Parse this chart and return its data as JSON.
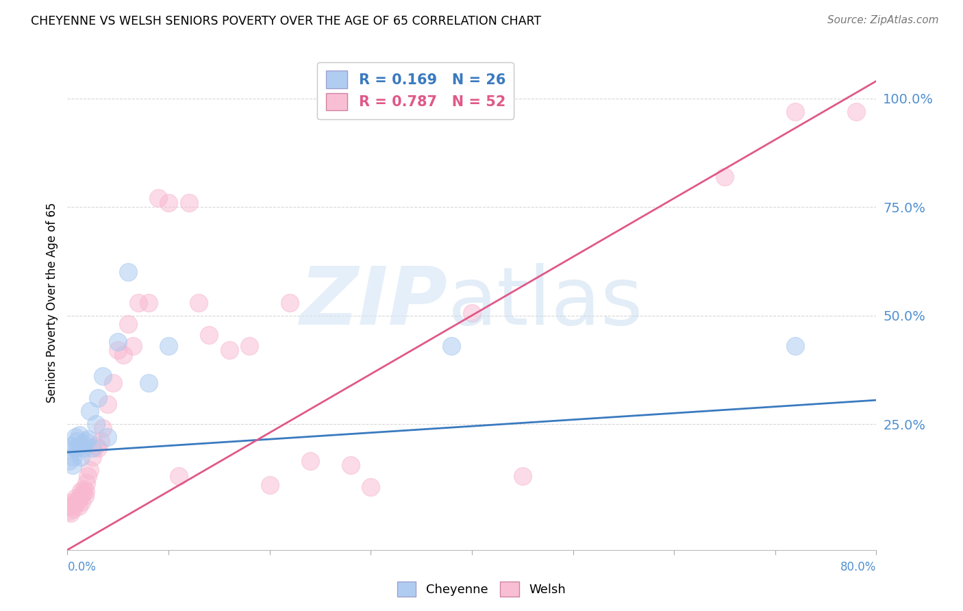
{
  "title": "CHEYENNE VS WELSH SENIORS POVERTY OVER THE AGE OF 65 CORRELATION CHART",
  "source": "Source: ZipAtlas.com",
  "ylabel": "Seniors Poverty Over the Age of 65",
  "cheyenne_color": "#a8c8f0",
  "welsh_color": "#f8b8d0",
  "cheyenne_line_color": "#3a7abf",
  "welsh_line_color": "#e05888",
  "cheyenne_R": 0.169,
  "cheyenne_N": 26,
  "welsh_R": 0.787,
  "welsh_N": 52,
  "xmin": 0.0,
  "xmax": 0.8,
  "ymin": -0.04,
  "ymax": 1.1,
  "cheyenne_line_x0": 0.0,
  "cheyenne_line_x1": 0.8,
  "cheyenne_line_y0": 0.185,
  "cheyenne_line_y1": 0.305,
  "welsh_line_x0": 0.0,
  "welsh_line_x1": 0.8,
  "welsh_line_y0": -0.04,
  "welsh_line_y1": 1.04,
  "yticks": [
    0.25,
    0.5,
    0.75,
    1.0
  ],
  "ytick_labels": [
    "25.0%",
    "50.0%",
    "75.0%",
    "100.0%"
  ],
  "text_color_blue": "#5090d0",
  "grid_color": "#d8d8d8",
  "cheyenne_x": [
    0.002,
    0.004,
    0.005,
    0.006,
    0.007,
    0.008,
    0.009,
    0.01,
    0.012,
    0.013,
    0.015,
    0.016,
    0.018,
    0.02,
    0.022,
    0.025,
    0.028,
    0.03,
    0.035,
    0.04,
    0.05,
    0.06,
    0.08,
    0.1,
    0.38,
    0.72
  ],
  "cheyenne_y": [
    0.165,
    0.2,
    0.155,
    0.175,
    0.195,
    0.22,
    0.21,
    0.195,
    0.225,
    0.175,
    0.205,
    0.195,
    0.21,
    0.215,
    0.28,
    0.195,
    0.25,
    0.31,
    0.36,
    0.22,
    0.44,
    0.6,
    0.345,
    0.43,
    0.43,
    0.43
  ],
  "welsh_x": [
    0.001,
    0.002,
    0.003,
    0.004,
    0.005,
    0.006,
    0.007,
    0.008,
    0.009,
    0.01,
    0.011,
    0.012,
    0.013,
    0.014,
    0.015,
    0.016,
    0.017,
    0.018,
    0.019,
    0.02,
    0.022,
    0.025,
    0.028,
    0.03,
    0.033,
    0.035,
    0.04,
    0.045,
    0.05,
    0.055,
    0.06,
    0.065,
    0.07,
    0.08,
    0.09,
    0.1,
    0.11,
    0.12,
    0.13,
    0.14,
    0.16,
    0.18,
    0.2,
    0.22,
    0.24,
    0.28,
    0.3,
    0.4,
    0.45,
    0.65,
    0.72,
    0.78
  ],
  "welsh_y": [
    0.06,
    0.05,
    0.045,
    0.06,
    0.07,
    0.055,
    0.065,
    0.08,
    0.07,
    0.075,
    0.06,
    0.08,
    0.095,
    0.07,
    0.09,
    0.1,
    0.085,
    0.095,
    0.115,
    0.13,
    0.145,
    0.175,
    0.2,
    0.195,
    0.21,
    0.24,
    0.295,
    0.345,
    0.42,
    0.41,
    0.48,
    0.43,
    0.53,
    0.53,
    0.77,
    0.76,
    0.13,
    0.76,
    0.53,
    0.455,
    0.42,
    0.43,
    0.11,
    0.53,
    0.165,
    0.155,
    0.105,
    0.505,
    0.13,
    0.82,
    0.97,
    0.97
  ]
}
